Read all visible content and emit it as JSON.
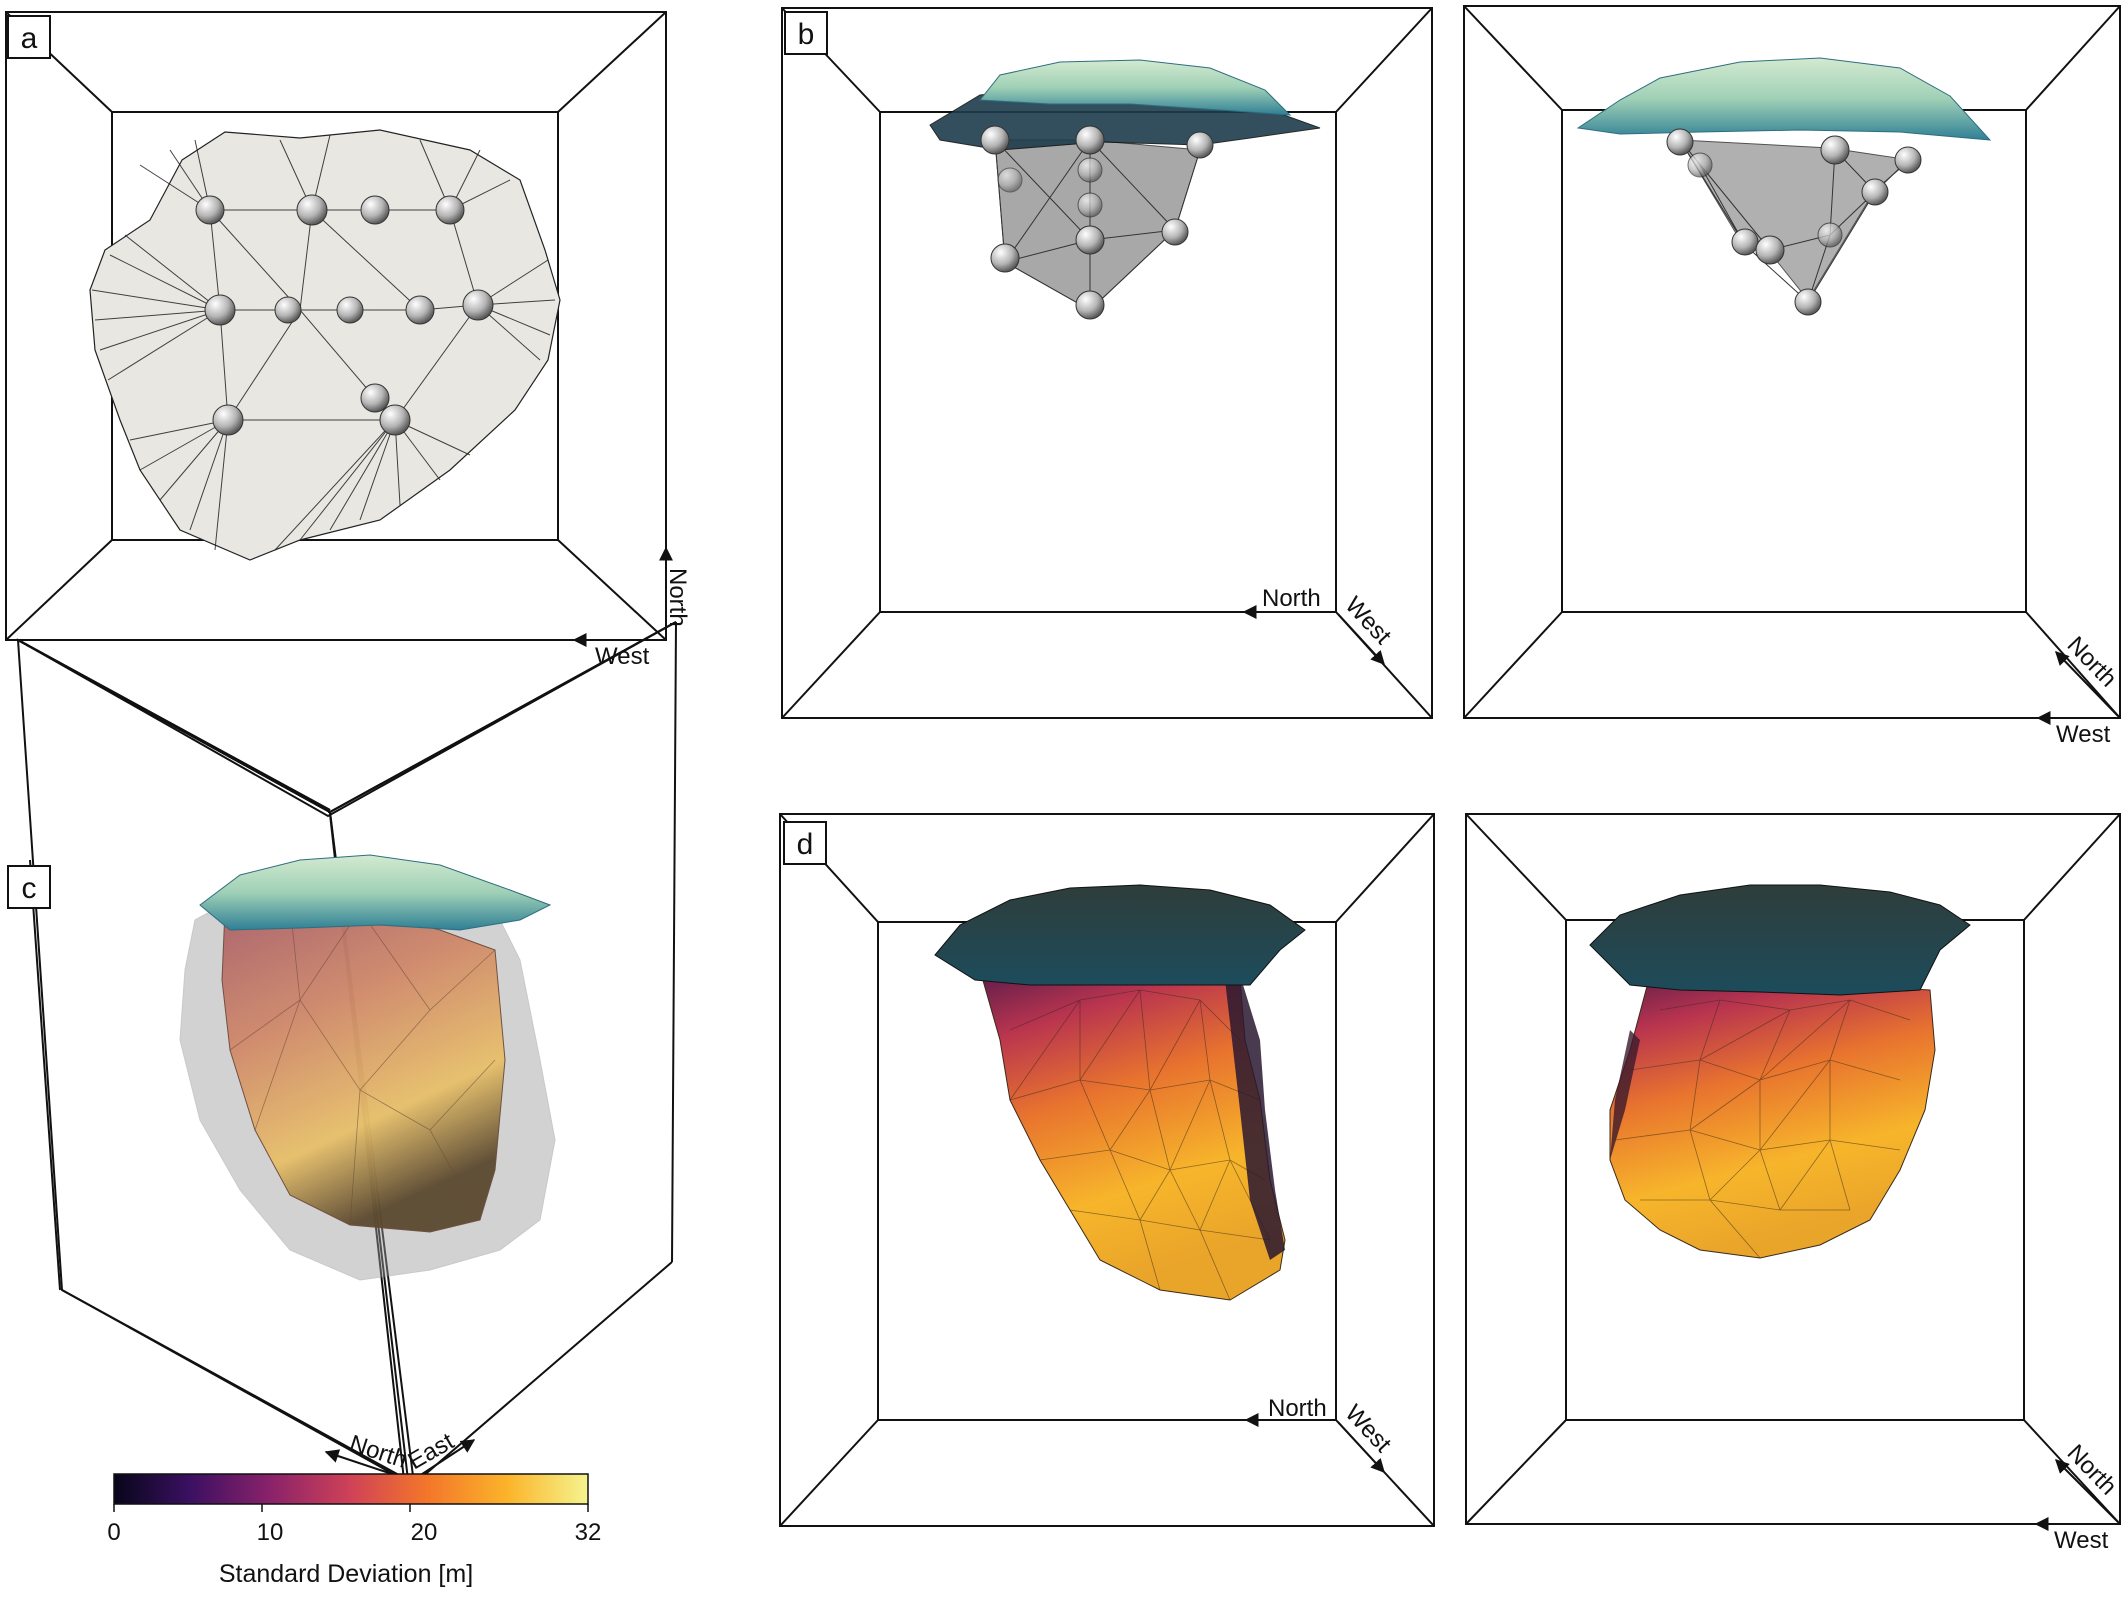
{
  "panels": {
    "a": {
      "letter": "a",
      "arrows": [
        "North",
        "West"
      ]
    },
    "b": {
      "letter": "b",
      "left_arrows": [
        "North",
        "West"
      ],
      "right_arrows": [
        "North",
        "West"
      ]
    },
    "c": {
      "letter": "c",
      "arrows": [
        "North",
        "East"
      ]
    },
    "d": {
      "letter": "d",
      "left_arrows": [
        "North",
        "West"
      ],
      "right_arrows": [
        "North",
        "West"
      ]
    }
  },
  "colorbar": {
    "title": "Standard Deviation [m]",
    "ticks": [
      "0",
      "10",
      "20",
      "32"
    ],
    "min": 0,
    "max": 32,
    "stops": [
      "#07061a",
      "#3b1061",
      "#8a226a",
      "#d04257",
      "#f3762a",
      "#fbb42a",
      "#f5f48e"
    ]
  },
  "colors": {
    "frame": "#111111",
    "mesh_fill": "#e6e5e0",
    "surface_top": "#b9dcb0",
    "surface_edge": "#2d7f93",
    "dark_surface": "#243b3a"
  }
}
